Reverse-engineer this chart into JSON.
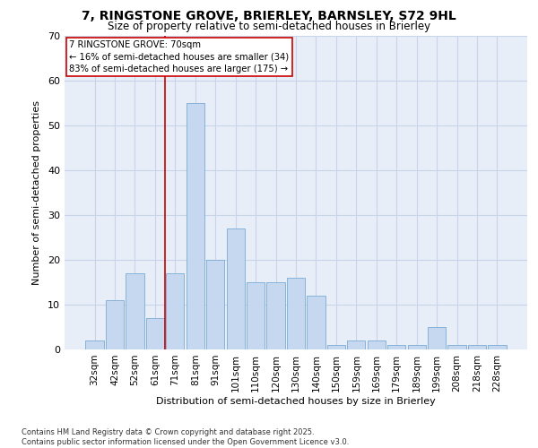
{
  "title_line1": "7, RINGSTONE GROVE, BRIERLEY, BARNSLEY, S72 9HL",
  "title_line2": "Size of property relative to semi-detached houses in Brierley",
  "xlabel": "Distribution of semi-detached houses by size in Brierley",
  "ylabel": "Number of semi-detached properties",
  "categories": [
    "32sqm",
    "42sqm",
    "52sqm",
    "61sqm",
    "71sqm",
    "81sqm",
    "91sqm",
    "101sqm",
    "110sqm",
    "120sqm",
    "130sqm",
    "140sqm",
    "150sqm",
    "159sqm",
    "169sqm",
    "179sqm",
    "189sqm",
    "199sqm",
    "208sqm",
    "218sqm",
    "228sqm"
  ],
  "values": [
    2,
    11,
    17,
    7,
    17,
    55,
    20,
    27,
    15,
    15,
    16,
    12,
    1,
    2,
    2,
    1,
    1,
    5,
    1,
    1,
    1
  ],
  "bar_color": "#c5d8f0",
  "bar_edge_color": "#7aabd4",
  "subject_value": 70,
  "pct_smaller": 16,
  "count_smaller": 34,
  "pct_larger": 83,
  "count_larger": 175,
  "annotation_box_color": "#cc0000",
  "ylim": [
    0,
    70
  ],
  "yticks": [
    0,
    10,
    20,
    30,
    40,
    50,
    60,
    70
  ],
  "grid_color": "#c8d4e8",
  "bg_color": "#e8eef8",
  "footer_line1": "Contains HM Land Registry data © Crown copyright and database right 2025.",
  "footer_line2": "Contains public sector information licensed under the Open Government Licence v3.0."
}
